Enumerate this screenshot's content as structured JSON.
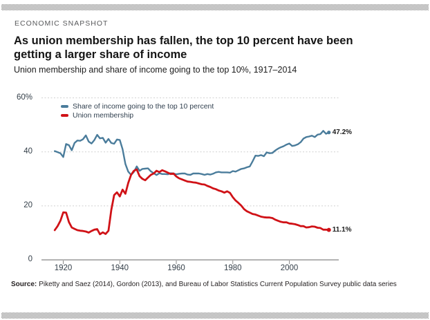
{
  "header": {
    "kicker": "ECONOMIC SNAPSHOT",
    "title_lines": [
      "As union membership has fallen, the top 10 percent have been",
      "getting a larger share of income"
    ],
    "subtitle": "Union membership and share of income going to the top 10%, 1917–2014"
  },
  "legend": [
    {
      "label": "Share of income going to the top 10 percent",
      "color": "#4a7c9b"
    },
    {
      "label": "Union membership",
      "color": "#d01217"
    }
  ],
  "source": {
    "prefix": "Source:",
    "text": "Piketty and Saez (2014), Gordon (2013), and Bureau of Labor Statistics Current Population Survey public data series"
  },
  "colors": {
    "income_line": "#4a7c9b",
    "union_line": "#d01217",
    "gridline": "#cfcfcf",
    "zero_axis": "#b2b2b2",
    "tick_mark": "#8a8a8a",
    "border_bar": "#b5b5b5"
  },
  "chart_data": {
    "type": "line",
    "title": "As union membership has fallen, the top 10 percent have been getting a larger share of income",
    "subtitle": "Union membership and share of income going to the top 10%, 1917–2014",
    "xlabel": "",
    "ylabel": "",
    "ylim": [
      0,
      60
    ],
    "x_range": [
      1917,
      2014
    ],
    "grid": "horizontal-dotted",
    "legend_position": "top-left-inside",
    "yticks": [
      {
        "value": 0,
        "label": "0"
      },
      {
        "value": 20,
        "label": "20"
      },
      {
        "value": 40,
        "label": "40"
      },
      {
        "value": 60,
        "label": "60%"
      }
    ],
    "xticks": [
      {
        "value": 1920,
        "label": "1920"
      },
      {
        "value": 1940,
        "label": "1940"
      },
      {
        "value": 1960,
        "label": "1960"
      },
      {
        "value": 1980,
        "label": "1980"
      },
      {
        "value": 2000,
        "label": "2000"
      }
    ],
    "x": [
      1917,
      1918,
      1919,
      1920,
      1921,
      1922,
      1923,
      1924,
      1925,
      1926,
      1927,
      1928,
      1929,
      1930,
      1931,
      1932,
      1933,
      1934,
      1935,
      1936,
      1937,
      1938,
      1939,
      1940,
      1941,
      1942,
      1943,
      1944,
      1945,
      1946,
      1947,
      1948,
      1949,
      1950,
      1951,
      1952,
      1953,
      1954,
      1955,
      1956,
      1957,
      1958,
      1959,
      1960,
      1961,
      1962,
      1963,
      1964,
      1965,
      1966,
      1967,
      1968,
      1969,
      1970,
      1971,
      1972,
      1973,
      1974,
      1975,
      1976,
      1977,
      1978,
      1979,
      1980,
      1981,
      1982,
      1983,
      1984,
      1985,
      1986,
      1987,
      1988,
      1989,
      1990,
      1991,
      1992,
      1993,
      1994,
      1995,
      1996,
      1997,
      1998,
      1999,
      2000,
      2001,
      2002,
      2003,
      2004,
      2005,
      2006,
      2007,
      2008,
      2009,
      2010,
      2011,
      2012,
      2013,
      2014
    ],
    "series": [
      {
        "name": "Share of income going to the top 10 percent",
        "color": "#4a7c9b",
        "end_label": "47.2%",
        "end_value": 47.2,
        "values": [
          40.3,
          39.9,
          39.5,
          38.1,
          42.9,
          42.5,
          40.6,
          43.3,
          44.2,
          44.1,
          44.7,
          46.1,
          43.8,
          43.1,
          44.4,
          46.3,
          45.0,
          45.2,
          43.4,
          44.8,
          43.3,
          43.0,
          44.6,
          44.4,
          41.0,
          35.5,
          32.7,
          31.5,
          32.6,
          34.6,
          33.0,
          33.7,
          33.8,
          33.9,
          32.8,
          32.1,
          31.4,
          32.1,
          31.8,
          31.8,
          31.7,
          32.1,
          32.0,
          31.7,
          31.9,
          32.0,
          32.0,
          31.6,
          31.5,
          32.0,
          32.0,
          32.0,
          31.8,
          31.5,
          31.8,
          31.6,
          31.9,
          32.4,
          32.6,
          32.4,
          32.4,
          32.4,
          32.3,
          32.9,
          32.7,
          33.2,
          33.7,
          33.9,
          34.3,
          34.6,
          36.5,
          38.6,
          38.5,
          38.8,
          38.4,
          39.8,
          39.5,
          39.6,
          40.5,
          41.2,
          41.7,
          42.1,
          42.7,
          43.1,
          42.2,
          42.4,
          42.8,
          43.6,
          44.9,
          45.5,
          45.7,
          46.0,
          45.5,
          46.4,
          46.6,
          47.8,
          46.7,
          47.2
        ]
      },
      {
        "name": "Union membership",
        "color": "#d01217",
        "end_label": "11.1%",
        "end_value": 11.1,
        "values": [
          11.0,
          12.5,
          14.5,
          17.6,
          17.5,
          14.0,
          12.0,
          11.5,
          11.0,
          10.8,
          10.7,
          10.5,
          10.1,
          10.7,
          11.2,
          11.4,
          9.5,
          10.2,
          9.6,
          10.8,
          18.5,
          24.0,
          25.0,
          23.5,
          26.0,
          24.5,
          28.5,
          31.5,
          33.0,
          33.5,
          31.0,
          30.0,
          29.5,
          30.5,
          31.5,
          32.0,
          33.0,
          32.5,
          33.2,
          32.8,
          32.3,
          31.8,
          32.0,
          30.9,
          30.2,
          29.8,
          29.4,
          29.0,
          28.9,
          28.7,
          28.6,
          28.3,
          28.0,
          27.9,
          27.4,
          27.0,
          26.5,
          26.2,
          25.7,
          25.4,
          24.9,
          25.4,
          24.8,
          23.2,
          22.0,
          21.1,
          20.1,
          18.8,
          18.0,
          17.5,
          17.0,
          16.8,
          16.4,
          16.0,
          15.8,
          15.7,
          15.7,
          15.5,
          14.9,
          14.5,
          14.1,
          13.9,
          13.9,
          13.5,
          13.4,
          13.2,
          12.9,
          12.5,
          12.5,
          12.0,
          12.1,
          12.4,
          12.3,
          11.9,
          11.8,
          11.2,
          11.2,
          11.1
        ]
      }
    ]
  }
}
